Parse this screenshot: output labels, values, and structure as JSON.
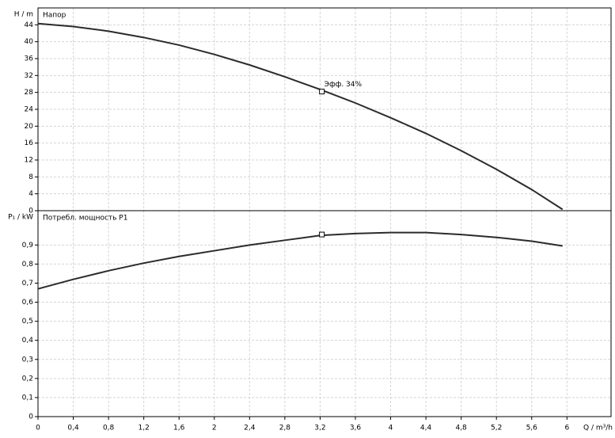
{
  "chart_data": [
    {
      "type": "line",
      "ylabel": "H / m",
      "annotation": "Напор",
      "color": "#2b2b2b",
      "x": [
        0,
        0.4,
        0.8,
        1.2,
        1.6,
        2,
        2.4,
        2.8,
        3.2,
        3.6,
        4,
        4.4,
        4.8,
        5.2,
        5.6,
        5.95
      ],
      "values": [
        44.3,
        43.6,
        42.5,
        41,
        39.2,
        37,
        34.5,
        31.7,
        28.7,
        25.5,
        22,
        18.3,
        14.2,
        9.8,
        5,
        0.3
      ],
      "operating_point": {
        "x": 3.22,
        "y": 28.2,
        "label": "Эфф.  34%"
      },
      "xlim": [
        0,
        6.5
      ],
      "ylim": [
        0,
        48
      ],
      "yticks": [
        0,
        4,
        8,
        12,
        16,
        20,
        24,
        28,
        32,
        36,
        40,
        44
      ],
      "grid": true
    },
    {
      "type": "line",
      "ylabel": "P₁ / kW",
      "xlabel": "Q / m³/h",
      "annotation": "Потребл. мощность P1",
      "color": "#2b2b2b",
      "x": [
        0,
        0.4,
        0.8,
        1.2,
        1.6,
        2,
        2.4,
        2.8,
        3.2,
        3.6,
        4,
        4.4,
        4.8,
        5.2,
        5.6,
        5.95
      ],
      "values": [
        0.67,
        0.72,
        0.765,
        0.805,
        0.84,
        0.87,
        0.9,
        0.925,
        0.95,
        0.96,
        0.965,
        0.965,
        0.955,
        0.94,
        0.92,
        0.895
      ],
      "operating_point": {
        "x": 3.22,
        "y": 0.955
      },
      "xlim": [
        0,
        6.5
      ],
      "ylim": [
        0,
        1.08
      ],
      "xticks": [
        0,
        {
          "value": 0.4,
          "label": "0,4"
        },
        {
          "value": 0.8,
          "label": "0,8"
        },
        {
          "value": 1.2,
          "label": "1,2"
        },
        {
          "value": 1.6,
          "label": "1,6"
        },
        2,
        {
          "value": 2.4,
          "label": "2,4"
        },
        {
          "value": 2.8,
          "label": "2,8"
        },
        {
          "value": 3.2,
          "label": "3,2"
        },
        {
          "value": 3.6,
          "label": "3,6"
        },
        4,
        {
          "value": 4.4,
          "label": "4,4"
        },
        {
          "value": 4.8,
          "label": "4,8"
        },
        {
          "value": 5.2,
          "label": "5,2"
        },
        {
          "value": 5.6,
          "label": "5,6"
        },
        6
      ],
      "yticks": [
        0,
        {
          "value": 0.1,
          "label": "0,1"
        },
        {
          "value": 0.2,
          "label": "0,2"
        },
        {
          "value": 0.3,
          "label": "0,3"
        },
        {
          "value": 0.4,
          "label": "0,4"
        },
        {
          "value": 0.5,
          "label": "0,5"
        },
        {
          "value": 0.6,
          "label": "0,6"
        },
        {
          "value": 0.7,
          "label": "0,7"
        },
        {
          "value": 0.8,
          "label": "0,8"
        },
        {
          "value": 0.9,
          "label": "0,9"
        }
      ],
      "grid": true
    }
  ]
}
